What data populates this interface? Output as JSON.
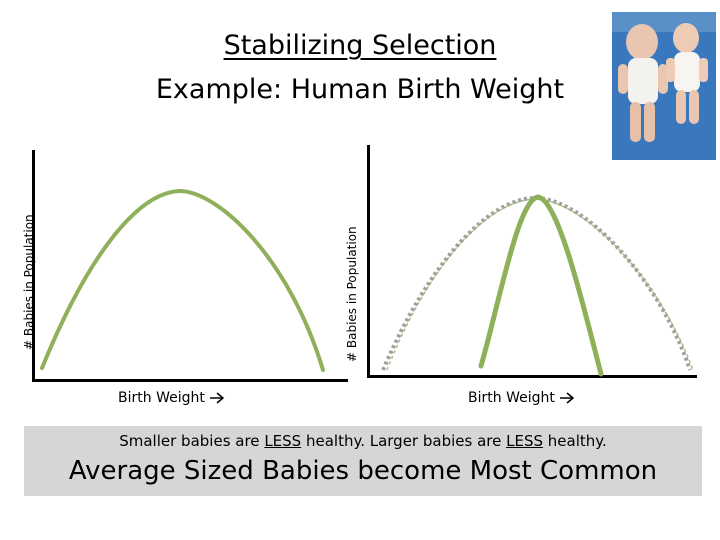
{
  "title": {
    "line1": "Stabilizing Selection",
    "line2": "Example: Human Birth Weight"
  },
  "photo": {
    "description": "two newborn babies"
  },
  "left_graph": {
    "ylabel": "# Babies in Population",
    "xlabel": "Birth Weight"
  },
  "right_graph": {
    "ylabel": "# Babies in Population",
    "xlabel": "Birth Weight"
  },
  "banner": {
    "part1": "Smaller babies are ",
    "less1": "LESS",
    "part2": " healthy.  Larger babies are ",
    "less2": "LESS",
    "part3": " healthy.",
    "headline": "Average Sized Babies become Most Common"
  },
  "colors": {
    "curve": "#8fb05a",
    "axis": "#000000",
    "banner_bg": "#d6d6d6",
    "dotted": "#a0a0a0"
  }
}
